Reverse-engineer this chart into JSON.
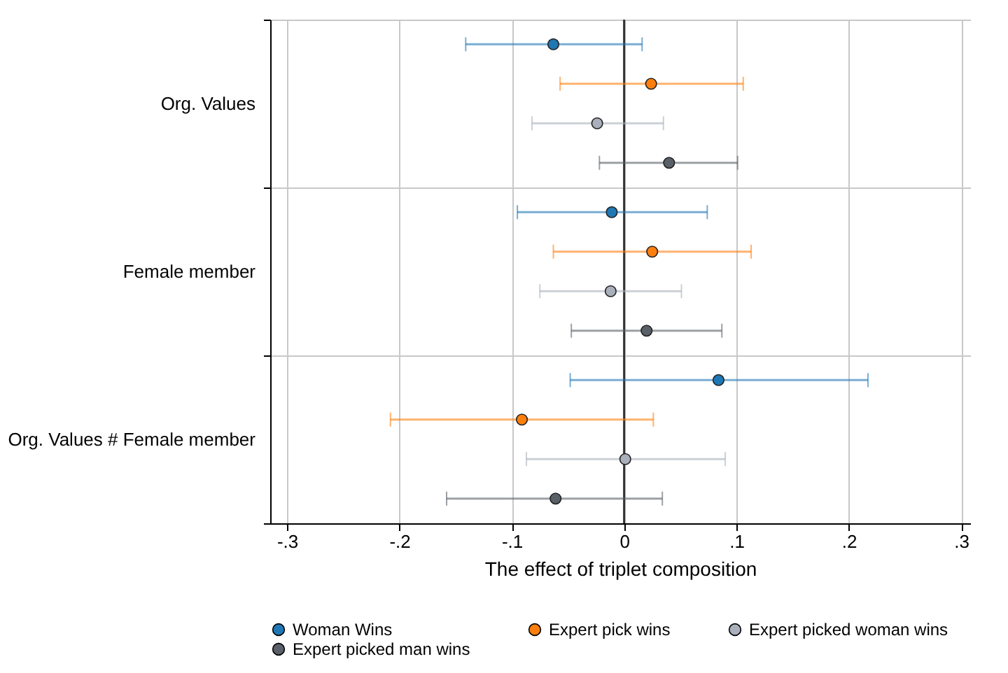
{
  "chart_data": {
    "type": "scatter",
    "orientation": "horizontal",
    "xlabel": "The effect of triplet composition",
    "categories": [
      "Org. Values",
      "Female member",
      "Org. Values # Female member"
    ],
    "series": [
      {
        "name": "Woman Wins",
        "color": "#1f77b4",
        "values": [
          -0.063,
          -0.011,
          0.084
        ],
        "errors": [
          [
            -0.141,
            0.016
          ],
          [
            -0.095,
            0.074
          ],
          [
            -0.048,
            0.217
          ]
        ]
      },
      {
        "name": "Expert pick wins",
        "color": "#ff7f0e",
        "values": [
          0.024,
          0.025,
          -0.091
        ],
        "errors": [
          [
            -0.057,
            0.106
          ],
          [
            -0.063,
            0.113
          ],
          [
            -0.208,
            0.026
          ]
        ]
      },
      {
        "name": "Expert picked woman wins",
        "color": "#aab0bb",
        "values": [
          -0.024,
          -0.012,
          0.001
        ],
        "errors": [
          [
            -0.082,
            0.035
          ],
          [
            -0.075,
            0.051
          ],
          [
            -0.087,
            0.09
          ]
        ]
      },
      {
        "name": "Expert picked man wins",
        "color": "#5a6068",
        "values": [
          0.04,
          0.02,
          -0.061
        ],
        "errors": [
          [
            -0.022,
            0.101
          ],
          [
            -0.047,
            0.087
          ],
          [
            -0.158,
            0.034
          ]
        ]
      }
    ],
    "xlim": [
      -0.315,
      0.308
    ],
    "xticks": [
      {
        "value": -0.3,
        "label": "-.3"
      },
      {
        "value": -0.2,
        "label": "-.2"
      },
      {
        "value": -0.1,
        "label": "-.1"
      },
      0,
      {
        "value": 0.1,
        "label": ".1"
      },
      {
        "value": 0.2,
        "label": ".2"
      },
      {
        "value": 0.3,
        "label": ".3"
      }
    ],
    "ref_lines": [
      {
        "axis": "x",
        "value": 0,
        "color": "#333333"
      }
    ],
    "grid": true,
    "legend": "bottom",
    "marker": "circle"
  }
}
